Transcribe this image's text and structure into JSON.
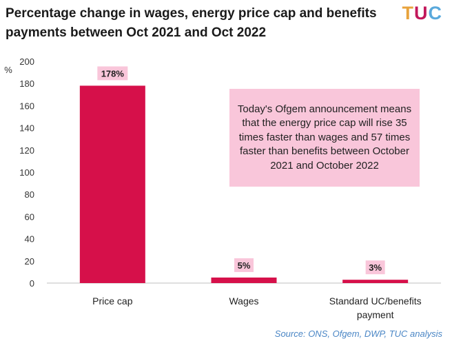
{
  "title": "Percentage change in wages, energy price cap and benefits payments between Oct 2021 and Oct 2022",
  "logo": {
    "t": "T",
    "u": "U",
    "c": "C",
    "colors": {
      "t": "#e8a33c",
      "u": "#c2185b",
      "c": "#5aa9dc"
    }
  },
  "source": "Source: ONS, Ofgem, DWP, TUC analysis",
  "annotation": "Today's Ofgem announcement means that the energy price cap will rise 35 times faster than wages and 57 times faster than benefits between October 2021 and October 2022",
  "colors": {
    "bar": "#d6104a",
    "label_bg": "#f9c6da",
    "grid": "#bfbfbf"
  },
  "chart_data": {
    "type": "bar",
    "title": "Percentage change in wages, energy price cap and benefits payments between Oct 2021 and Oct 2022",
    "ylabel": "%",
    "xlabel": "",
    "ylim": [
      0,
      200
    ],
    "yticks": [
      0,
      20,
      40,
      60,
      80,
      100,
      120,
      140,
      160,
      180,
      200
    ],
    "categories": [
      [
        "Price cap"
      ],
      [
        "Wages"
      ],
      [
        "Standard UC/benefits",
        "payment"
      ]
    ],
    "values": [
      178,
      5,
      3
    ],
    "data_labels": [
      "178%",
      "5%",
      "3%"
    ],
    "grid": false
  }
}
